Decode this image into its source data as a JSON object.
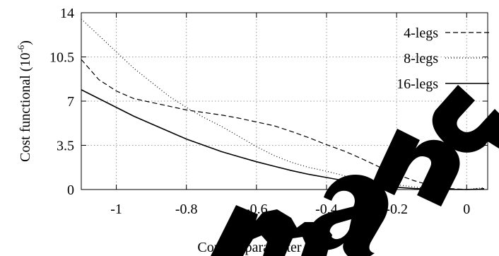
{
  "chart_data": {
    "type": "line",
    "xlabel": "Convex parameter",
    "ylabel": "Cost functional (10",
    "ylabel_sup": "-6",
    "ylabel_tail": ")",
    "xlim": [
      -1.1,
      0.06
    ],
    "ylim": [
      0,
      14
    ],
    "x_ticks": [
      -1,
      -0.8,
      -0.6,
      -0.4,
      -0.2,
      0
    ],
    "x_tick_labels": [
      "-1",
      "-0.8",
      "-0.6",
      "-0.4",
      "-0.2",
      "0"
    ],
    "y_ticks": [
      0,
      3.5,
      7,
      10.5,
      14
    ],
    "y_tick_labels": [
      "0",
      "3.5",
      "7",
      "10.5",
      "14"
    ],
    "grid": true,
    "legend_position": "top-right",
    "series": [
      {
        "name": "4-legs",
        "style": "dashed",
        "x": [
          -1.1,
          -1.05,
          -1.0,
          -0.95,
          -0.9,
          -0.85,
          -0.8,
          -0.75,
          -0.7,
          -0.65,
          -0.6,
          -0.55,
          -0.5,
          -0.45,
          -0.4,
          -0.35,
          -0.3,
          -0.25,
          -0.2,
          -0.15,
          -0.1,
          -0.05,
          0.0,
          0.05
        ],
        "y": [
          10.3,
          8.7,
          7.8,
          7.2,
          6.9,
          6.6,
          6.3,
          6.1,
          5.9,
          5.65,
          5.35,
          5.05,
          4.6,
          4.1,
          3.55,
          3.05,
          2.45,
          1.8,
          1.2,
          0.7,
          0.3,
          0.08,
          0.0,
          0.08
        ]
      },
      {
        "name": "8-legs",
        "style": "dotted",
        "x": [
          -1.1,
          -1.05,
          -1.0,
          -0.95,
          -0.9,
          -0.85,
          -0.8,
          -0.75,
          -0.7,
          -0.65,
          -0.6,
          -0.55,
          -0.5,
          -0.45,
          -0.4,
          -0.35,
          -0.3,
          -0.25,
          -0.2,
          -0.15,
          -0.1,
          -0.05,
          0.0,
          0.05
        ],
        "y": [
          13.5,
          12.2,
          10.9,
          9.6,
          8.5,
          7.4,
          6.5,
          5.7,
          5.0,
          4.2,
          3.4,
          2.7,
          2.15,
          1.75,
          1.45,
          1.1,
          0.85,
          0.6,
          0.38,
          0.2,
          0.07,
          0.02,
          0.0,
          0.15
        ]
      },
      {
        "name": "16-legs",
        "style": "solid",
        "x": [
          -1.1,
          -1.05,
          -1.0,
          -0.95,
          -0.9,
          -0.85,
          -0.8,
          -0.75,
          -0.7,
          -0.65,
          -0.6,
          -0.55,
          -0.5,
          -0.45,
          -0.4,
          -0.35,
          -0.3,
          -0.25,
          -0.2,
          -0.15,
          -0.1,
          -0.05,
          0.0,
          0.05
        ],
        "y": [
          7.9,
          7.2,
          6.5,
          5.8,
          5.2,
          4.6,
          4.0,
          3.5,
          3.0,
          2.6,
          2.2,
          1.85,
          1.5,
          1.2,
          0.95,
          0.7,
          0.5,
          0.32,
          0.18,
          0.08,
          0.03,
          0.01,
          0.0,
          0.02
        ]
      }
    ]
  },
  "watermark": {
    "text": "Manu",
    "color": "#000000"
  }
}
